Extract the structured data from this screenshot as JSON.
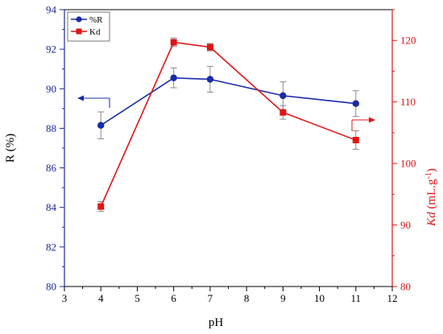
{
  "chart_data": {
    "type": "line",
    "xlabel": "pH",
    "x_ticks": [
      3,
      4,
      5,
      6,
      7,
      8,
      9,
      10,
      11,
      12
    ],
    "xlim": [
      3,
      12
    ],
    "left_axis": {
      "label": "R (%)",
      "ylim": [
        80,
        94
      ],
      "ticks": [
        80,
        82,
        84,
        86,
        88,
        90,
        92,
        94
      ],
      "color": "#1a2b9c"
    },
    "right_axis": {
      "label_italic": "Kd",
      "label_rest": " (mL.g",
      "label_sup": "-1",
      "label_close": ")",
      "ylim": [
        80,
        125
      ],
      "ticks": [
        80,
        90,
        100,
        110,
        120
      ],
      "color": "#e01414"
    },
    "series": [
      {
        "name": "%R",
        "axis": "left",
        "color": "#1a2ba8",
        "marker": "circle",
        "x": [
          4,
          6,
          7,
          9,
          11
        ],
        "y": [
          88.15,
          90.55,
          90.48,
          89.65,
          89.25
        ],
        "err": [
          0.68,
          0.5,
          0.65,
          0.7,
          0.65
        ]
      },
      {
        "name": "Kd",
        "axis": "right",
        "color": "#e01414",
        "marker": "square",
        "x": [
          4,
          6,
          7,
          9,
          11
        ],
        "y": [
          93.0,
          119.7,
          118.9,
          108.3,
          103.8
        ],
        "err": [
          0.8,
          0.7,
          0.6,
          1.1,
          1.5
        ]
      }
    ],
    "legend": {
      "placement": "top-left",
      "entries": [
        "%R",
        "Kd"
      ]
    },
    "annotations": [
      {
        "type": "arrow",
        "points_to": "left-axis",
        "series": "%R"
      },
      {
        "type": "arrow",
        "points_to": "right-axis",
        "series": "Kd"
      }
    ],
    "grid": false
  }
}
